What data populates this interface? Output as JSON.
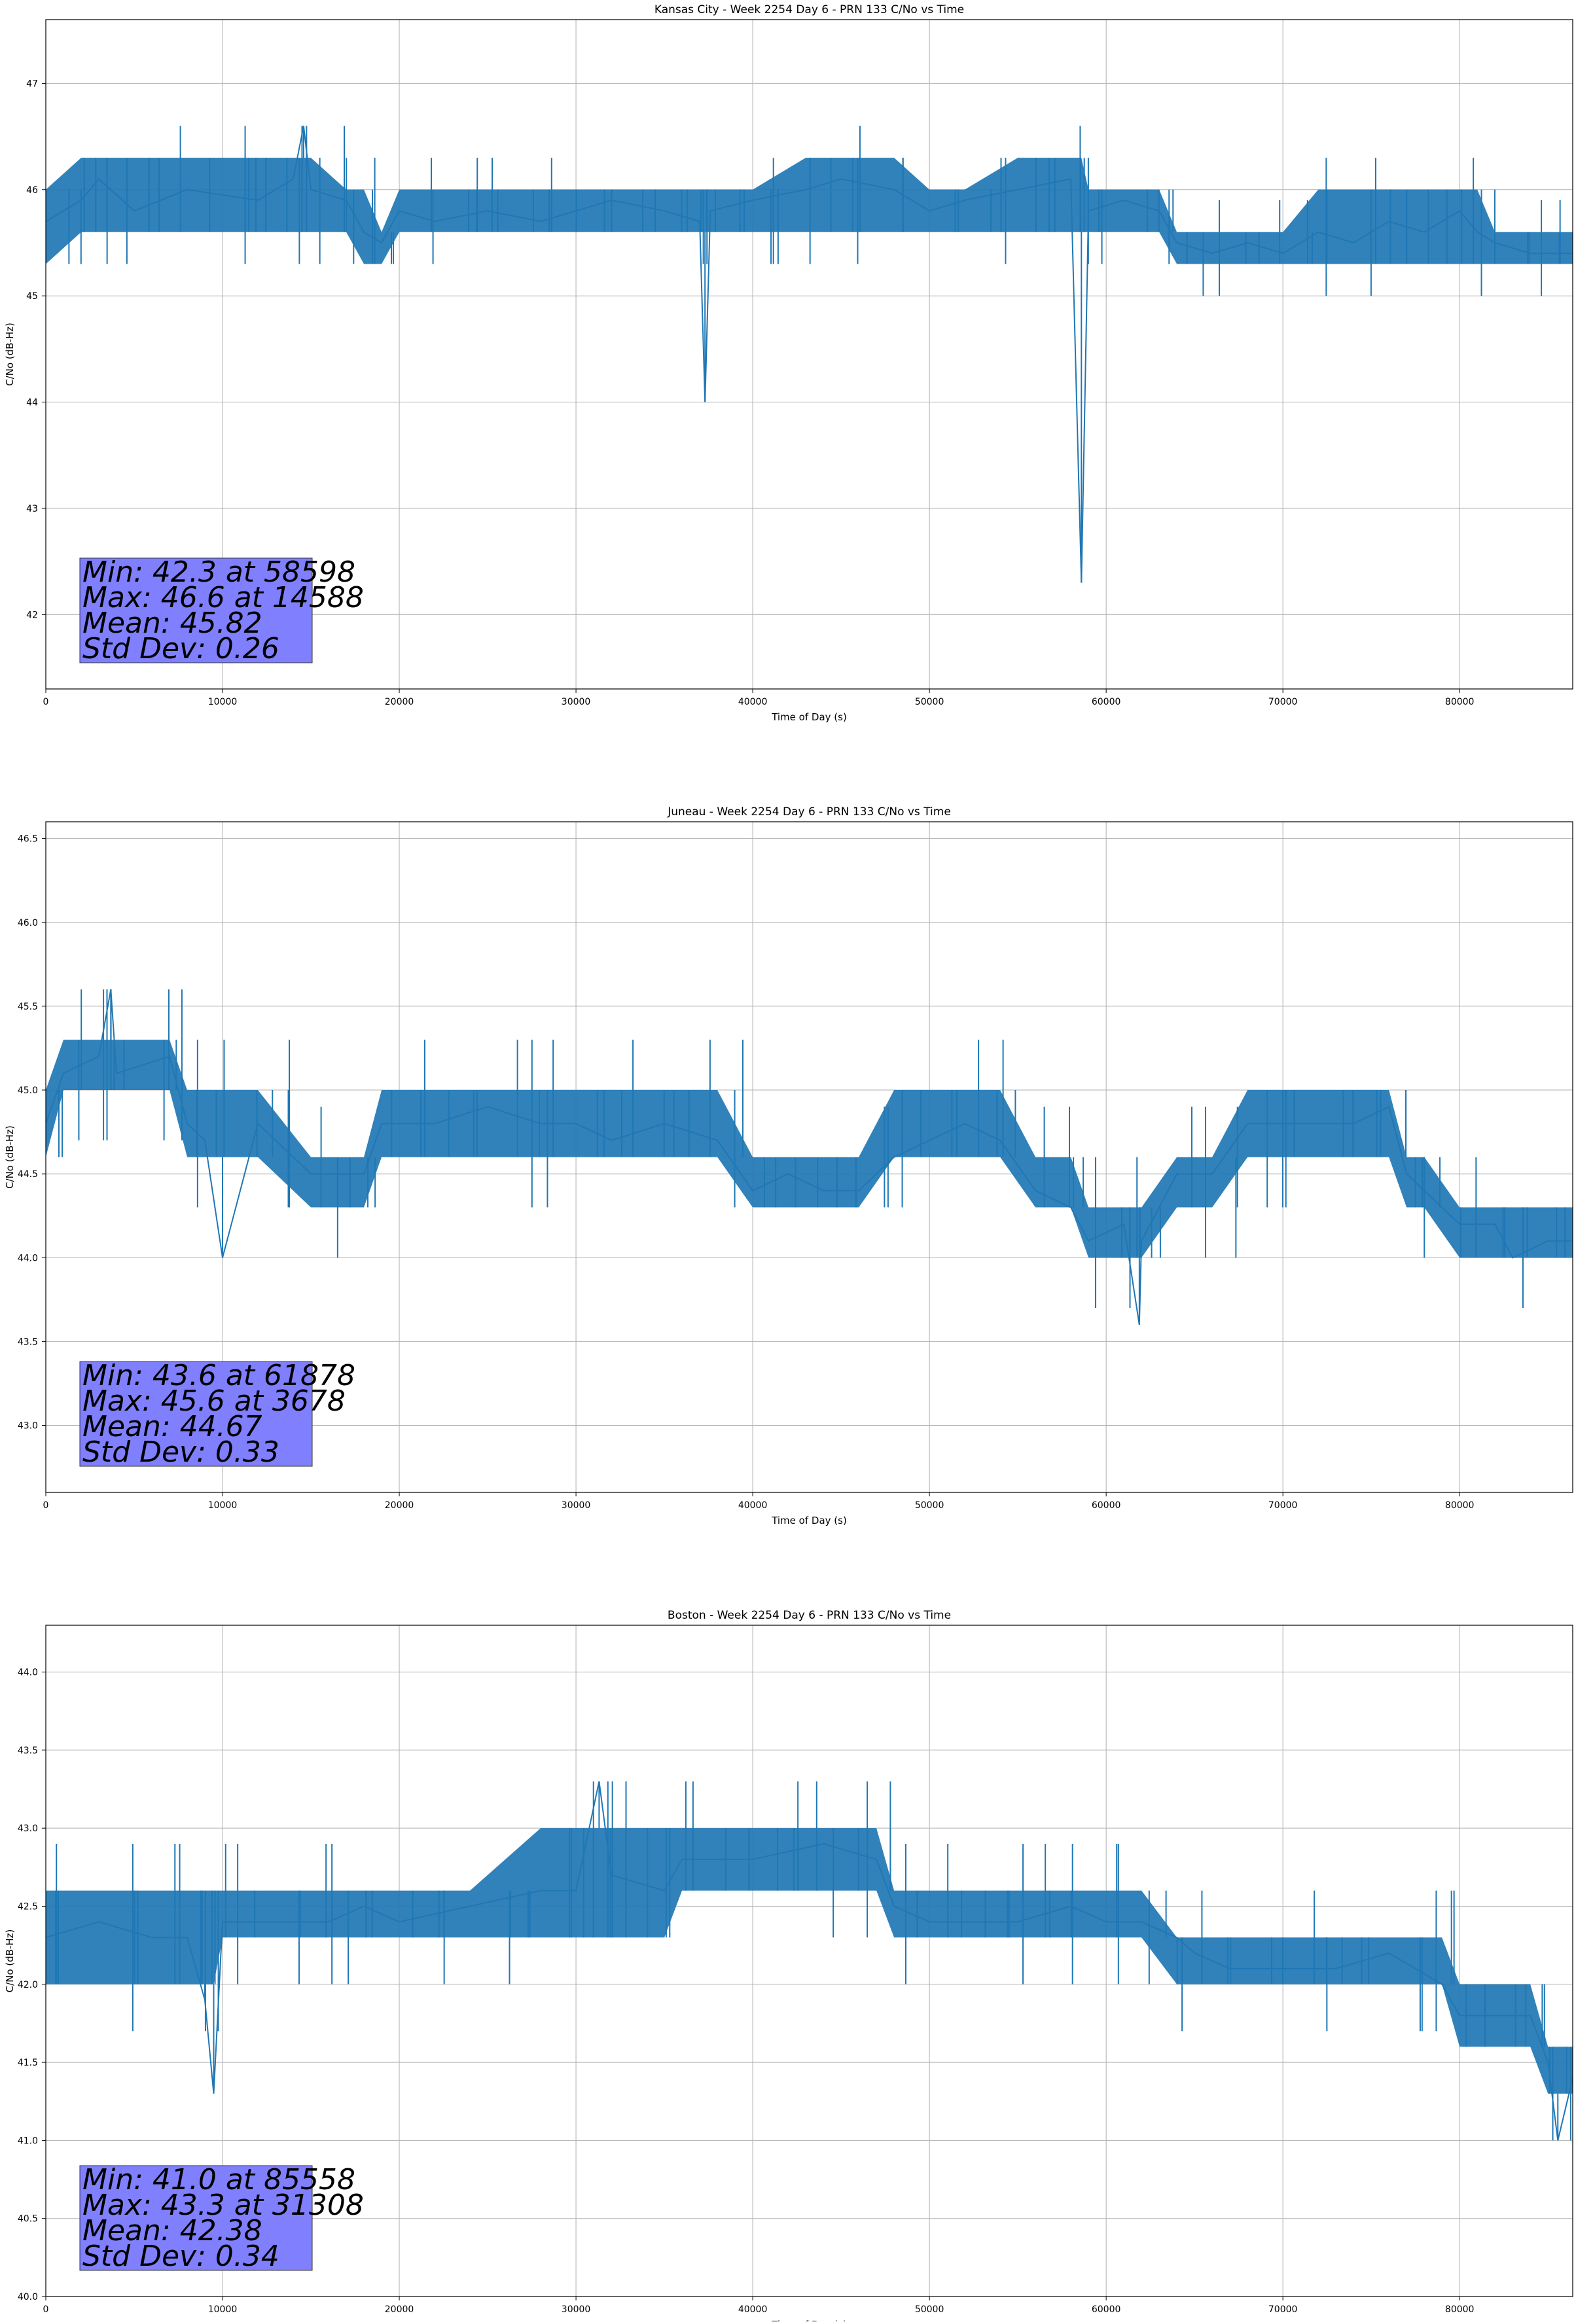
{
  "figure": {
    "background": "#ffffff",
    "series_color": "#1f77b4",
    "grid_color": "#b0b0b0",
    "stats_box_color": "#8080ff"
  },
  "chart_data": [
    {
      "type": "line",
      "title": "Kansas City - Week 2254 Day 6 - PRN 133 C/No vs Time",
      "xlabel": "Time of Day (s)",
      "ylabel": "C/No (dB-Hz)",
      "xlim": [
        0,
        86400
      ],
      "ylim": [
        41.3,
        47.6
      ],
      "xticks": [
        0,
        10000,
        20000,
        30000,
        40000,
        50000,
        60000,
        70000,
        80000
      ],
      "yticks": [
        42,
        43,
        44,
        45,
        46,
        47
      ],
      "grid": true,
      "series": [
        {
          "x": [
            0,
            2000,
            3000,
            5000,
            8000,
            12000,
            14000,
            14588,
            15000,
            17000,
            18000,
            19000,
            20000,
            22000,
            25000,
            28000,
            30000,
            32000,
            35000,
            37000,
            37300,
            37600,
            40000,
            43000,
            45000,
            48000,
            50000,
            52000,
            55000,
            58000,
            58598,
            59000,
            61000,
            63000,
            64000,
            66000,
            68000,
            70000,
            72000,
            74000,
            76000,
            78000,
            80000,
            81000,
            82000,
            84000,
            86400
          ],
          "y": [
            45.7,
            45.9,
            46.1,
            45.8,
            46.0,
            45.9,
            46.1,
            46.6,
            46.0,
            45.9,
            45.6,
            45.5,
            45.8,
            45.7,
            45.8,
            45.7,
            45.8,
            45.9,
            45.8,
            45.7,
            44.0,
            45.8,
            45.9,
            46.0,
            46.1,
            46.0,
            45.8,
            45.9,
            46.0,
            46.1,
            42.3,
            45.8,
            45.9,
            45.8,
            45.5,
            45.4,
            45.5,
            45.4,
            45.6,
            45.5,
            45.7,
            45.6,
            45.8,
            45.6,
            45.5,
            45.4,
            45.4
          ],
          "band_low": [
            45.3,
            45.6,
            45.6,
            45.6,
            45.6,
            45.6,
            45.6,
            45.6,
            45.6,
            45.6,
            45.3,
            45.3,
            45.6,
            45.6,
            45.6,
            45.6,
            45.6,
            45.6,
            45.6,
            45.6,
            45.6,
            45.6,
            45.6,
            45.6,
            45.6,
            45.6,
            45.6,
            45.6,
            45.6,
            45.6,
            45.6,
            45.6,
            45.6,
            45.6,
            45.3,
            45.3,
            45.3,
            45.3,
            45.3,
            45.3,
            45.3,
            45.3,
            45.3,
            45.3,
            45.3,
            45.3,
            45.3
          ],
          "band_high": [
            46.0,
            46.3,
            46.3,
            46.3,
            46.3,
            46.3,
            46.3,
            46.3,
            46.3,
            46.0,
            46.0,
            45.6,
            46.0,
            46.0,
            46.0,
            46.0,
            46.0,
            46.0,
            46.0,
            46.0,
            46.0,
            46.0,
            46.0,
            46.3,
            46.3,
            46.3,
            46.0,
            46.0,
            46.3,
            46.3,
            46.3,
            46.0,
            46.0,
            46.0,
            45.6,
            45.6,
            45.6,
            45.6,
            46.0,
            46.0,
            46.0,
            46.0,
            46.0,
            46.0,
            45.6,
            45.6,
            45.6
          ]
        }
      ],
      "stats": {
        "line1": "Min: 42.3 at 58598",
        "line2": "Max: 46.6 at 14588",
        "line3": "Mean: 45.82",
        "line4": "Std Dev: 0.26"
      }
    },
    {
      "type": "line",
      "title": "Juneau - Week 2254 Day 6 - PRN 133 C/No vs Time",
      "xlabel": "Time of Day (s)",
      "ylabel": "C/No (dB-Hz)",
      "xlim": [
        0,
        86400
      ],
      "ylim": [
        42.6,
        46.6
      ],
      "xticks": [
        0,
        10000,
        20000,
        30000,
        40000,
        50000,
        60000,
        70000,
        80000
      ],
      "yticks": [
        43.0,
        43.5,
        44.0,
        44.5,
        45.0,
        45.5,
        46.0,
        46.5
      ],
      "grid": true,
      "series": [
        {
          "x": [
            0,
            1000,
            3000,
            3678,
            4000,
            7000,
            8000,
            9000,
            10000,
            12000,
            15000,
            18000,
            19000,
            22000,
            25000,
            28000,
            30000,
            32000,
            35000,
            38000,
            40000,
            42000,
            44000,
            46000,
            48000,
            50000,
            52000,
            54000,
            56000,
            58000,
            59000,
            61000,
            61878,
            62000,
            64000,
            66000,
            68000,
            70000,
            72000,
            74000,
            76000,
            77000,
            78000,
            80000,
            82000,
            83000,
            85000,
            86400
          ],
          "y": [
            44.8,
            45.1,
            45.2,
            45.6,
            45.1,
            45.2,
            44.8,
            44.7,
            44.0,
            44.8,
            44.5,
            44.5,
            44.8,
            44.8,
            44.9,
            44.8,
            44.8,
            44.7,
            44.8,
            44.7,
            44.4,
            44.5,
            44.4,
            44.4,
            44.6,
            44.7,
            44.8,
            44.7,
            44.4,
            44.3,
            44.1,
            44.2,
            43.6,
            44.1,
            44.5,
            44.5,
            44.8,
            44.8,
            44.8,
            44.8,
            44.9,
            44.5,
            44.4,
            44.2,
            44.2,
            44.0,
            44.1,
            44.1
          ],
          "band_low": [
            44.6,
            45.0,
            45.0,
            45.0,
            45.0,
            45.0,
            44.6,
            44.6,
            44.6,
            44.6,
            44.3,
            44.3,
            44.6,
            44.6,
            44.6,
            44.6,
            44.6,
            44.6,
            44.6,
            44.6,
            44.3,
            44.3,
            44.3,
            44.3,
            44.6,
            44.6,
            44.6,
            44.6,
            44.3,
            44.3,
            44.0,
            44.0,
            44.0,
            44.0,
            44.3,
            44.3,
            44.6,
            44.6,
            44.6,
            44.6,
            44.6,
            44.3,
            44.3,
            44.0,
            44.0,
            44.0,
            44.0,
            44.0
          ],
          "band_high": [
            45.0,
            45.3,
            45.3,
            45.3,
            45.3,
            45.3,
            45.0,
            45.0,
            45.0,
            45.0,
            44.6,
            44.6,
            45.0,
            45.0,
            45.0,
            45.0,
            45.0,
            45.0,
            45.0,
            45.0,
            44.6,
            44.6,
            44.6,
            44.6,
            45.0,
            45.0,
            45.0,
            45.0,
            44.6,
            44.6,
            44.3,
            44.3,
            44.3,
            44.3,
            44.6,
            44.6,
            45.0,
            45.0,
            45.0,
            45.0,
            45.0,
            44.6,
            44.6,
            44.3,
            44.3,
            44.3,
            44.3,
            44.3
          ]
        }
      ],
      "stats": {
        "line1": "Min: 43.6 at 61878",
        "line2": "Max: 45.6 at 3678",
        "line3": "Mean: 44.67",
        "line4": "Std Dev: 0.33"
      }
    },
    {
      "type": "line",
      "title": "Boston - Week 2254 Day 6 - PRN 133 C/No vs Time",
      "xlabel": "Time of Day (s)",
      "ylabel": "C/No (dB-Hz)",
      "xlim": [
        0,
        86400
      ],
      "ylim": [
        40.0,
        44.3
      ],
      "xticks": [
        0,
        10000,
        20000,
        30000,
        40000,
        50000,
        60000,
        70000,
        80000
      ],
      "yticks": [
        40.0,
        40.5,
        41.0,
        41.5,
        42.0,
        42.5,
        43.0,
        43.5,
        44.0
      ],
      "grid": true,
      "series": [
        {
          "x": [
            0,
            3000,
            6000,
            8000,
            9000,
            9500,
            10000,
            13000,
            16000,
            18000,
            20000,
            24000,
            28000,
            30000,
            31308,
            32000,
            35000,
            36000,
            38000,
            40000,
            44000,
            47000,
            48000,
            50000,
            52000,
            55000,
            58000,
            60000,
            62000,
            64000,
            65000,
            67000,
            70000,
            73000,
            76000,
            79000,
            80000,
            82000,
            84000,
            85000,
            85558,
            86400
          ],
          "y": [
            42.3,
            42.4,
            42.3,
            42.3,
            41.9,
            41.3,
            42.4,
            42.4,
            42.4,
            42.5,
            42.4,
            42.5,
            42.6,
            42.6,
            43.3,
            42.7,
            42.6,
            42.8,
            42.8,
            42.8,
            42.9,
            42.8,
            42.5,
            42.4,
            42.4,
            42.4,
            42.5,
            42.4,
            42.4,
            42.3,
            42.2,
            42.1,
            42.1,
            42.1,
            42.2,
            42.0,
            41.8,
            41.8,
            41.8,
            41.5,
            41.0,
            41.4
          ],
          "band_low": [
            42.0,
            42.0,
            42.0,
            42.0,
            42.0,
            42.0,
            42.3,
            42.3,
            42.3,
            42.3,
            42.3,
            42.3,
            42.3,
            42.3,
            42.3,
            42.3,
            42.3,
            42.6,
            42.6,
            42.6,
            42.6,
            42.6,
            42.3,
            42.3,
            42.3,
            42.3,
            42.3,
            42.3,
            42.3,
            42.0,
            42.0,
            42.0,
            42.0,
            42.0,
            42.0,
            42.0,
            41.6,
            41.6,
            41.6,
            41.3,
            41.3,
            41.3
          ],
          "band_high": [
            42.6,
            42.6,
            42.6,
            42.6,
            42.6,
            42.6,
            42.6,
            42.6,
            42.6,
            42.6,
            42.6,
            42.6,
            43.0,
            43.0,
            43.0,
            43.0,
            43.0,
            43.0,
            43.0,
            43.0,
            43.0,
            43.0,
            42.6,
            42.6,
            42.6,
            42.6,
            42.6,
            42.6,
            42.6,
            42.3,
            42.3,
            42.3,
            42.3,
            42.3,
            42.3,
            42.3,
            42.0,
            42.0,
            42.0,
            41.6,
            41.6,
            41.6
          ]
        }
      ],
      "stats": {
        "line1": "Min: 41.0 at 85558",
        "line2": "Max: 43.3 at 31308",
        "line3": "Mean: 42.38",
        "line4": "Std Dev: 0.34"
      }
    }
  ]
}
